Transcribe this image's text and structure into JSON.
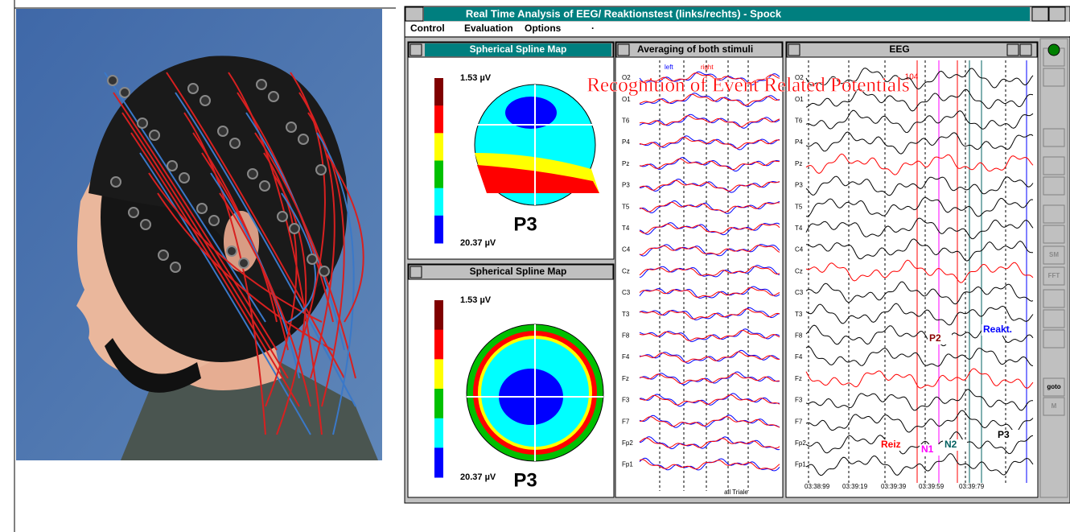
{
  "window": {
    "title": "Real Time Analysis of EEG/ Reaktionstest (links/rechts) - Spock",
    "menu": [
      "Control",
      "Evaluation",
      "Options",
      "·"
    ]
  },
  "map_panels": [
    {
      "title": "Spherical Spline Map",
      "scale_top": "1.53 µV",
      "scale_bottom": "20.37 µV",
      "label": "P3"
    },
    {
      "title": "Spherical Spline Map",
      "scale_top": "1.53 µV",
      "scale_bottom": "20.37 µV",
      "label": "P3"
    }
  ],
  "averaging_panel": {
    "title": "Averaging of both stimuli",
    "legend": [
      "left",
      "right"
    ],
    "channels": [
      "O2",
      "O1",
      "T6",
      "P4",
      "Pz",
      "P3",
      "T5",
      "T4",
      "C4",
      "Cz",
      "C3",
      "T3",
      "F8",
      "F4",
      "Fz",
      "F3",
      "F7",
      "Fp2",
      "Fp1"
    ],
    "footer": "all Triale"
  },
  "eeg_panel": {
    "title": "EEG",
    "marker": "104",
    "channels": [
      "O2",
      "O1",
      "T6",
      "P4",
      "Pz",
      "P3",
      "T5",
      "T4",
      "C4",
      "Cz",
      "C3",
      "T3",
      "F8",
      "F4",
      "Fz",
      "F3",
      "F7",
      "Fp2",
      "Fp1"
    ],
    "annotations": [
      "P2",
      "Reakt.",
      "Reiz",
      "N1",
      "N2",
      "P3"
    ],
    "times": [
      "03:38:99",
      "03:39:19",
      "03:39:39",
      "03:39:59",
      "03:39:79"
    ]
  },
  "overlay": "Recognition of Event Related Potentials",
  "toolbar": [
    "SM",
    "FFT",
    "goto",
    "M"
  ]
}
